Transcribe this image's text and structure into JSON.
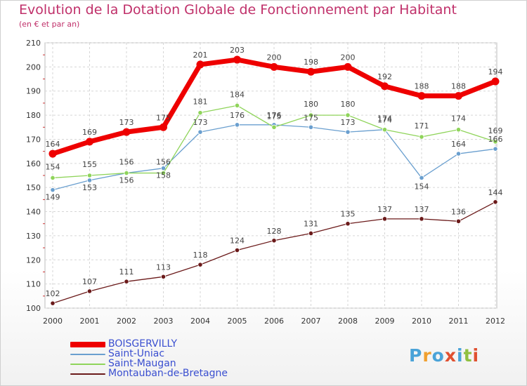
{
  "title": "Evolution de la Dotation Globale de Fonctionnement par Habitant",
  "subtitle": "(en € et par an)",
  "logo": {
    "text": "Proxiti",
    "letters": [
      "P",
      "r",
      "o",
      "x",
      "i",
      "t",
      "i"
    ],
    "colors": [
      "#4aa3d8",
      "#f0a030",
      "#4aa3d8",
      "#e05030",
      "#4aa3d8",
      "#90c040",
      "#e05030"
    ]
  },
  "chart_data": {
    "type": "line",
    "title": "Evolution de la Dotation Globale de Fonctionnement par Habitant",
    "subtitle": "(en € et par an)",
    "xlabel": "",
    "ylabel": "",
    "x": [
      "2000",
      "2001",
      "2002",
      "2003",
      "2004",
      "2005",
      "2006",
      "2007",
      "2008",
      "2009",
      "2010",
      "2011",
      "2012"
    ],
    "ylim": [
      100,
      210
    ],
    "yticks": [
      "100",
      "110",
      "120",
      "130",
      "140",
      "150",
      "160",
      "170",
      "180",
      "190",
      "200",
      "210"
    ],
    "grid": true,
    "legend_position": "bottom-left",
    "series": [
      {
        "name": "BOISGERVILLY",
        "color": "#ee0000",
        "values": [
          164,
          169,
          173,
          175,
          201,
          203,
          200,
          198,
          200,
          192,
          188,
          188,
          194
        ],
        "labels": [
          "164",
          "169",
          "173",
          "175",
          "201",
          "203",
          "200",
          "198",
          "200",
          "192",
          "188",
          "188",
          "194"
        ]
      },
      {
        "name": "Saint-Uniac",
        "color": "#6a9fcf",
        "values": [
          149,
          153,
          156,
          158,
          173,
          176,
          176,
          175,
          173,
          174,
          154,
          164,
          166
        ],
        "labels": [
          "149",
          "153",
          "156",
          "158",
          "173",
          "176",
          "176",
          "175",
          "173",
          "174",
          "154",
          "164",
          "166"
        ]
      },
      {
        "name": "Saint-Maugan",
        "color": "#8fd45a",
        "values": [
          154,
          155,
          156,
          156,
          181,
          184,
          175,
          180,
          180,
          174,
          171,
          174,
          169
        ],
        "labels": [
          "154",
          "155",
          "156",
          "156",
          "181",
          "184",
          "175",
          "180",
          "180",
          "174",
          "171",
          "174",
          "169"
        ]
      },
      {
        "name": "Montauban-de-Bretagne",
        "color": "#6b1a1a",
        "values": [
          102,
          107,
          111,
          113,
          118,
          124,
          128,
          131,
          135,
          137,
          137,
          136,
          144
        ],
        "labels": [
          "102",
          "107",
          "111",
          "113",
          "118",
          "124",
          "128",
          "131",
          "135",
          "137",
          "137",
          "136",
          "144"
        ]
      }
    ]
  }
}
